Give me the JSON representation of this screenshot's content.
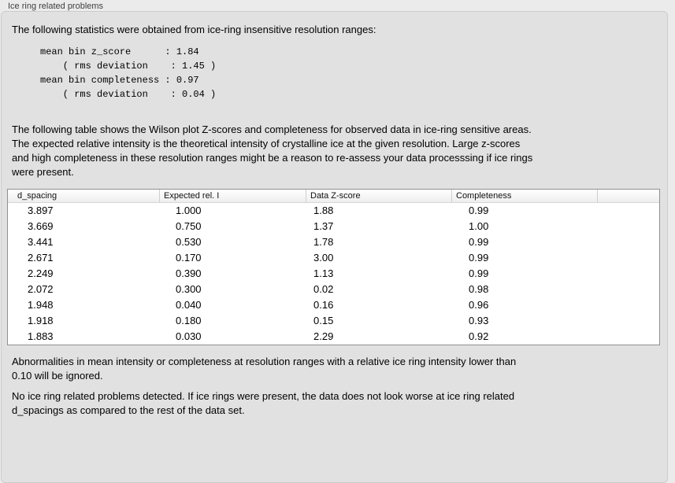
{
  "panel": {
    "title": "Ice ring related problems",
    "intro": "The following statistics were obtained from ice-ring insensitive resolution ranges:",
    "stats_block": "mean bin z_score      : 1.84\n    ( rms deviation    : 1.45 )\nmean bin completeness : 0.97\n    ( rms deviation    : 0.04 )",
    "stats_values": {
      "mean_bin_z_score": "1.84",
      "z_score_rms_deviation": "1.45",
      "mean_bin_completeness": "0.97",
      "completeness_rms_deviation": "0.04"
    },
    "table_description": "The following table shows the Wilson plot Z-scores and completeness for observed data in ice-ring sensitive areas.\nThe expected relative intensity is the theoretical intensity of crystalline ice at the given resolution. Large z-scores\nand high completeness in these resolution ranges might be a reason to re-assess your data processsing if ice rings\nwere present.",
    "abnormalities_note": "Abnormalities in mean intensity or completeness at resolution ranges with a relative ice ring intensity lower than\n0.10 will be ignored.",
    "conclusion": "No ice ring related problems detected. If ice rings were present, the data does not look worse at ice ring related\nd_spacings as compared to the rest of the data set."
  },
  "table": {
    "columns": [
      "d_spacing",
      "Expected rel. I",
      "Data Z-score",
      "Completeness"
    ],
    "rows": [
      [
        "3.897",
        "1.000",
        "1.88",
        "0.99"
      ],
      [
        "3.669",
        "0.750",
        "1.37",
        "1.00"
      ],
      [
        "3.441",
        "0.530",
        "1.78",
        "0.99"
      ],
      [
        "2.671",
        "0.170",
        "3.00",
        "0.99"
      ],
      [
        "2.249",
        "0.390",
        "1.13",
        "0.99"
      ],
      [
        "2.072",
        "0.300",
        "0.02",
        "0.98"
      ],
      [
        "1.948",
        "0.040",
        "0.16",
        "0.96"
      ],
      [
        "1.918",
        "0.180",
        "0.15",
        "0.93"
      ],
      [
        "1.883",
        "0.030",
        "2.29",
        "0.92"
      ]
    ]
  },
  "colors": {
    "outer_background": "#ebebeb",
    "panel_background": "#e1e1e1",
    "panel_border": "#cccccc",
    "table_border": "#8f8f8f",
    "table_background": "#ffffff",
    "text": "#000000",
    "label_text": "#3f3f3f"
  }
}
